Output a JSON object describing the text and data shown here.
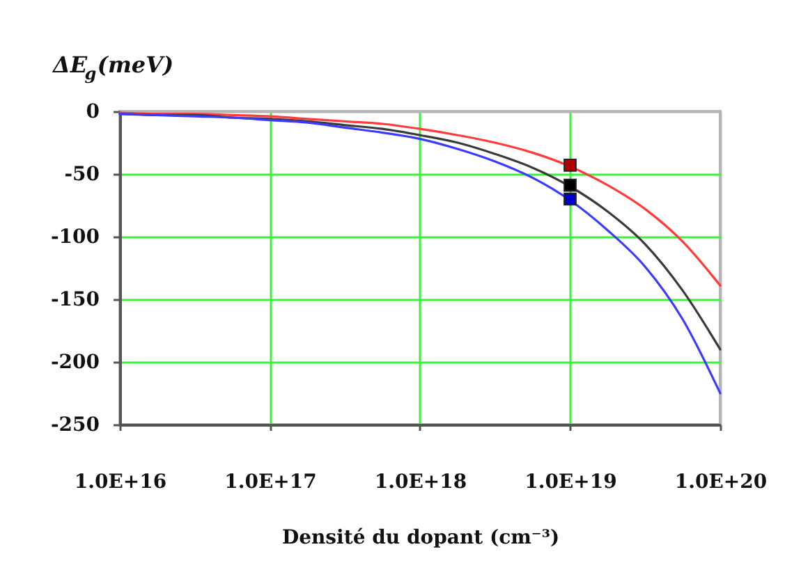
{
  "chart_data": {
    "type": "line",
    "ylabel": "ΔE$_{g}$(meV)",
    "xlabel": "Densité du dopant (cm⁻³)",
    "x": [
      1e+16,
      1.78e+16,
      3.16e+16,
      5.62e+16,
      1e+17,
      1.78e+17,
      3.16e+17,
      5.62e+17,
      1e+18,
      1.78e+18,
      3.16e+18,
      5.62e+18,
      1e+19,
      1.78e+19,
      3.16e+19,
      5.62e+19,
      1e+20
    ],
    "series": [
      {
        "color": "#ff3b3b",
        "values": [
          -1,
          -2,
          -2,
          -3,
          -4,
          -6,
          -8,
          -10,
          -14,
          -19,
          -25,
          -33,
          -44,
          -59,
          -78,
          -104,
          -139
        ]
      },
      {
        "color": "#3a3a3a",
        "values": [
          -2,
          -3,
          -3,
          -5,
          -6,
          -8,
          -11,
          -14,
          -19,
          -25,
          -34,
          -45,
          -60,
          -80,
          -106,
          -143,
          -190
        ]
      },
      {
        "color": "#3b3bff",
        "values": [
          -2,
          -3,
          -4,
          -5,
          -7,
          -9,
          -13,
          -17,
          -22,
          -30,
          -40,
          -53,
          -71,
          -95,
          -124,
          -166,
          -225
        ]
      },
      {
        "type": "scatter",
        "marker": "square",
        "color": "#b00000",
        "values": [
          null,
          null,
          null,
          null,
          null,
          null,
          null,
          null,
          null,
          null,
          null,
          null,
          -43,
          null,
          null,
          null,
          null
        ]
      },
      {
        "type": "scatter",
        "marker": "square",
        "color": "#000000",
        "values": [
          null,
          null,
          null,
          null,
          null,
          null,
          null,
          null,
          null,
          null,
          null,
          null,
          -59,
          null,
          null,
          null,
          null
        ]
      },
      {
        "type": "scatter",
        "marker": "square",
        "color": "#0000c8",
        "values": [
          null,
          null,
          null,
          null,
          null,
          null,
          null,
          null,
          null,
          null,
          null,
          null,
          -70,
          null,
          null,
          null,
          null
        ]
      }
    ],
    "xlim": [
      1e+16,
      1e+20
    ],
    "ylim": [
      -250,
      0
    ],
    "xticks": [
      {
        "value": 1e+16,
        "label": "1.0E+16"
      },
      {
        "value": 1e+17,
        "label": "1.0E+17"
      },
      {
        "value": 1e+18,
        "label": "1.0E+18"
      },
      {
        "value": 1e+19,
        "label": "1.0E+19"
      },
      {
        "value": 1e+20,
        "label": "1.0E+20"
      }
    ],
    "yticks": [
      -250,
      -200,
      -150,
      -100,
      -50,
      0
    ],
    "log": "x",
    "grid": true,
    "marker": "none",
    "line_style": "solid"
  }
}
